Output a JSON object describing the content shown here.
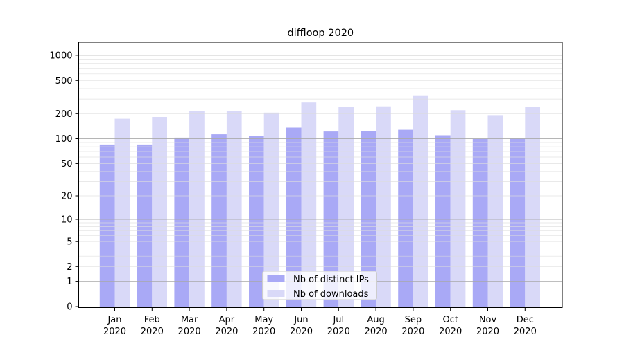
{
  "chart_data": {
    "type": "bar",
    "title": "diffloop 2020",
    "categories": [
      "Jan",
      "Feb",
      "Mar",
      "Apr",
      "May",
      "Jun",
      "Jul",
      "Aug",
      "Sep",
      "Oct",
      "Nov",
      "Dec"
    ],
    "year_label": "2020",
    "series": [
      {
        "name": "Nb of distinct IPs",
        "color": "#a9a9f6",
        "values": [
          85,
          85,
          103,
          113,
          108,
          136,
          122,
          123,
          128,
          110,
          99,
          100
        ]
      },
      {
        "name": "Nb of downloads",
        "color": "#d9d9f8",
        "values": [
          174,
          183,
          217,
          217,
          206,
          272,
          240,
          245,
          326,
          220,
          192,
          240
        ]
      }
    ],
    "y_ticks": [
      0,
      1,
      2,
      5,
      10,
      20,
      50,
      100,
      200,
      500,
      1000
    ],
    "scale": "log1p",
    "ylim": [
      0,
      1400
    ],
    "grid": true,
    "legend_position": "lower center",
    "background_color": "#ffffff",
    "axis_color": "#000000",
    "major_grid_color": "#a8a8a8",
    "minor_grid_color": "#dcdcdc",
    "legend_border_color": "#cccccc",
    "legend_background": "#ffffff"
  }
}
